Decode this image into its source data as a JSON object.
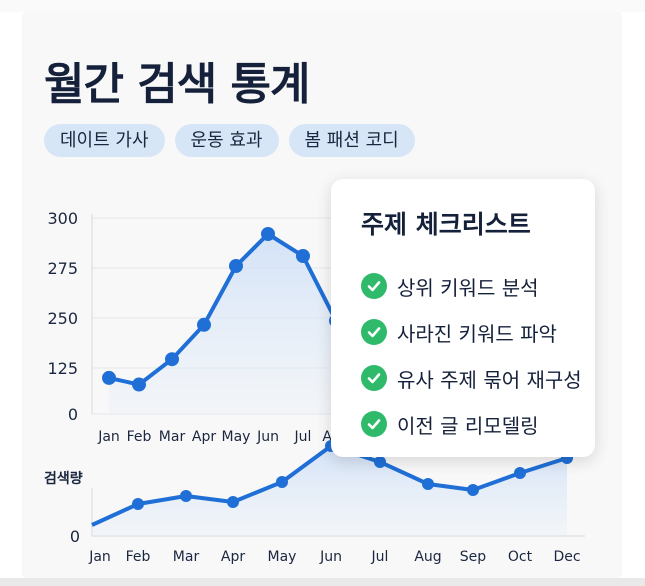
{
  "title": "월간 검색 통계",
  "tags": [
    "데이트 가사",
    "운동 효과",
    "봄 패션 코디"
  ],
  "checklist": {
    "title": "주제 체크리스트",
    "items": [
      "상위 키워드 분석",
      "사라진 키워드 파악",
      "유사 주제 묶어 재구성",
      "이전 글 리모델링"
    ]
  },
  "chart_data": [
    {
      "type": "area",
      "categories": [
        "Jan",
        "Feb",
        "Mar",
        "Apr",
        "May",
        "Jun",
        "Jul",
        "Aug"
      ],
      "values": [
        98,
        80,
        147,
        233,
        276,
        292,
        281,
        243
      ],
      "y_tick_labels": [
        "300",
        "275",
        "250",
        "125",
        "0"
      ],
      "accent_color": "#1f6fd6"
    },
    {
      "type": "area",
      "categories": [
        "Jan",
        "Feb",
        "Mar",
        "Apr",
        "May",
        "Jun",
        "Jul",
        "Aug",
        "Sep",
        "Oct",
        "Dec"
      ],
      "values": [
        18,
        32,
        40,
        34,
        54,
        90,
        74,
        52,
        46,
        63,
        78
      ],
      "ylabel": "검색량",
      "y_tick_labels": [
        "0"
      ],
      "ylim": [
        0,
        100
      ],
      "accent_color": "#1f6fd6"
    }
  ]
}
